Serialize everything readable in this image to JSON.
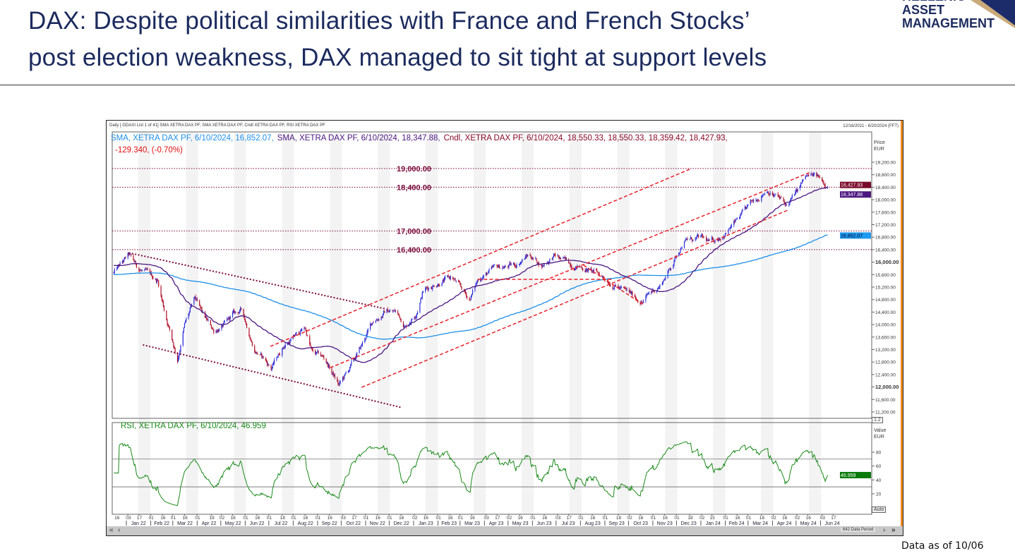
{
  "slide": {
    "title_line1": "DAX: Despite political similarities with France and French Stocks’",
    "title_line2": "post election weakness, DAX managed to sit tight at support levels",
    "logo_text": "HELLENIC ASSET MANAGEMENT",
    "logo_line2": "ASSET",
    "logo_line3": "MANAGEMENT",
    "footer": "Data as of 10/06"
  },
  "chart_data": {
    "type": "line",
    "title": "Daily [.GDAXI List 1 of 41] SMA XETRA DAX PF, SMA XETRA DAX PF, Cndl XETRA DAX PF, RSI XETRA DAX PF",
    "date_range": "12/16/2021 - 6/20/2024 (FFT)",
    "legend": {
      "sma200": "SMA, XETRA DAX PF, 6/10/2024, 16,852.07,",
      "sma50": "SMA, XETRA DAX PF, 6/10/2024, 18,347.88,",
      "cndl": "Cndl, XETRA DAX PF, 6/10/2024, 18,550.33, 18,550.33, 18,359.42, 18,427.93,",
      "change": "-129.340, (-0.70%)",
      "rsi": "RSI, XETRA DAX PF, 6/10/2024, 46.959"
    },
    "price_axis": {
      "label": "Price",
      "unit": "EUR",
      "ylim": [
        11200,
        19200
      ],
      "step": 400,
      "ticks": [
        "11,200.00",
        "11,600.00",
        "12,000.00",
        "12,400.00",
        "12,800.00",
        "13,200.00",
        "13,600.00",
        "14,000.00",
        "14,400.00",
        "14,800.00",
        "15,200.00",
        "15,600.00",
        "16,000.00",
        "16,400.00",
        "16,800.00",
        "17,200.00",
        "17,600.00",
        "18,000.00",
        "18,400.00",
        "18,800.00",
        "19,200.00"
      ]
    },
    "rsi_axis": {
      "label": "Value",
      "unit": "EUR",
      "ticks": [
        "20",
        "40",
        "60",
        "80"
      ],
      "bands": [
        30,
        70
      ]
    },
    "last_values": {
      "close": "18,427.93",
      "sma50": "18,347.88",
      "sma200": "16,852.07",
      "rsi": "46.959"
    },
    "levels": [
      {
        "value": 19000,
        "label": "19,000.00"
      },
      {
        "value": 18400,
        "label": "18,400.00"
      },
      {
        "value": 17000,
        "label": "17,000.00"
      },
      {
        "value": 16400,
        "label": "16,400.00"
      }
    ],
    "trendlines": [
      {
        "name": "desc-upper",
        "style": "dotted",
        "from": [
          "2022-01-04",
          16300
        ],
        "to": [
          "2022-11-27",
          14500
        ]
      },
      {
        "name": "desc-lower",
        "style": "dotted",
        "from": [
          "2022-01-22",
          13350
        ],
        "to": [
          "2022-12-17",
          11340
        ]
      },
      {
        "name": "rise-upper",
        "style": "dashed",
        "from": [
          "2022-07-03",
          13300
        ],
        "to": [
          "2023-12-20",
          19000
        ]
      },
      {
        "name": "rise-mid",
        "style": "dashed",
        "from": [
          "2022-09-17",
          12620
        ],
        "to": [
          "2024-05-21",
          18900
        ]
      },
      {
        "name": "rise-lower",
        "style": "dashed",
        "from": [
          "2022-10-27",
          11990
        ],
        "to": [
          "2024-04-20",
          17660
        ]
      },
      {
        "name": "range-flat",
        "style": "dashed",
        "from": [
          "2023-03-24",
          15450
        ],
        "to": [
          "2023-09-12",
          15450
        ]
      },
      {
        "name": "wedge-down",
        "style": "dashed",
        "from": [
          "2023-08-05",
          15900
        ],
        "to": [
          "2023-10-19",
          14650
        ]
      }
    ],
    "close_waypoints": [
      [
        "2021-12-16",
        15650
      ],
      [
        "2022-01-04",
        16200
      ],
      [
        "2022-01-16",
        15800
      ],
      [
        "2022-02-10",
        15400
      ],
      [
        "2022-02-18",
        14500
      ],
      [
        "2022-03-07",
        12900
      ],
      [
        "2022-03-16",
        14000
      ],
      [
        "2022-03-29",
        14800
      ],
      [
        "2022-04-10",
        14200
      ],
      [
        "2022-04-22",
        13800
      ],
      [
        "2022-05-07",
        14000
      ],
      [
        "2022-05-16",
        14300
      ],
      [
        "2022-05-28",
        14450
      ],
      [
        "2022-06-13",
        13200
      ],
      [
        "2022-06-25",
        12900
      ],
      [
        "2022-07-04",
        12600
      ],
      [
        "2022-07-19",
        13300
      ],
      [
        "2022-08-16",
        13900
      ],
      [
        "2022-08-25",
        13100
      ],
      [
        "2022-09-10",
        12900
      ],
      [
        "2022-09-28",
        12050
      ],
      [
        "2022-10-10",
        12500
      ],
      [
        "2022-10-25",
        13200
      ],
      [
        "2022-11-10",
        14100
      ],
      [
        "2022-11-28",
        14450
      ],
      [
        "2022-12-10",
        14400
      ],
      [
        "2022-12-22",
        13950
      ],
      [
        "2023-01-04",
        14400
      ],
      [
        "2023-01-13",
        15100
      ],
      [
        "2023-02-04",
        15400
      ],
      [
        "2023-02-19",
        15500
      ],
      [
        "2023-03-13",
        14800
      ],
      [
        "2023-03-25",
        15500
      ],
      [
        "2023-04-16",
        15800
      ],
      [
        "2023-05-10",
        15900
      ],
      [
        "2023-05-28",
        16250
      ],
      [
        "2023-06-13",
        15900
      ],
      [
        "2023-06-28",
        16200
      ],
      [
        "2023-07-10",
        16050
      ],
      [
        "2023-08-07",
        15800
      ],
      [
        "2023-08-25",
        15600
      ],
      [
        "2023-09-13",
        15300
      ],
      [
        "2023-10-01",
        15000
      ],
      [
        "2023-10-19",
        14750
      ],
      [
        "2023-10-28",
        15000
      ],
      [
        "2023-11-10",
        15250
      ],
      [
        "2023-11-25",
        15900
      ],
      [
        "2023-12-10",
        16700
      ],
      [
        "2024-01-01",
        16750
      ],
      [
        "2024-01-13",
        16600
      ],
      [
        "2024-02-01",
        16950
      ],
      [
        "2024-02-19",
        17400
      ],
      [
        "2024-03-10",
        18000
      ],
      [
        "2024-03-25",
        18350
      ],
      [
        "2024-04-07",
        18100
      ],
      [
        "2024-04-19",
        17800
      ],
      [
        "2024-05-01",
        18200
      ],
      [
        "2024-05-13",
        18700
      ],
      [
        "2024-05-25",
        18750
      ],
      [
        "2024-06-04",
        18600
      ],
      [
        "2024-06-10",
        18428
      ]
    ],
    "x_axis": {
      "lead_tick": "16",
      "months": [
        {
          "label": "Jan 22",
          "ticks": [
            "03",
            "17"
          ]
        },
        {
          "label": "Feb 22",
          "ticks": [
            "01",
            "16"
          ]
        },
        {
          "label": "Mar 22",
          "ticks": [
            "01",
            "16"
          ]
        },
        {
          "label": "Apr 22",
          "ticks": [
            "01",
            "19"
          ]
        },
        {
          "label": "May 22",
          "ticks": [
            "02",
            "16"
          ]
        },
        {
          "label": "Jun 22",
          "ticks": [
            "01",
            "16"
          ]
        },
        {
          "label": "Jul 22",
          "ticks": [
            "01",
            "18"
          ]
        },
        {
          "label": "Aug 22",
          "ticks": [
            "01",
            "16"
          ]
        },
        {
          "label": "Sep 22",
          "ticks": [
            "01",
            "16"
          ]
        },
        {
          "label": "Oct 22",
          "ticks": [
            "03",
            "17"
          ]
        },
        {
          "label": "Nov 22",
          "ticks": [
            "01",
            "16"
          ]
        },
        {
          "label": "Dec 22",
          "ticks": [
            "01",
            "16"
          ]
        },
        {
          "label": "Jan 23",
          "ticks": [
            "02",
            "16"
          ]
        },
        {
          "label": "Feb 23",
          "ticks": [
            "01",
            "16"
          ]
        },
        {
          "label": "Mar 23",
          "ticks": [
            "01",
            "16"
          ]
        },
        {
          "label": "Apr 23",
          "ticks": [
            "03",
            "17"
          ]
        },
        {
          "label": "May 23",
          "ticks": [
            "02",
            "16"
          ]
        },
        {
          "label": "Jun 23",
          "ticks": [
            "01",
            "16"
          ]
        },
        {
          "label": "Jul 23",
          "ticks": [
            "03",
            "17"
          ]
        },
        {
          "label": "Aug 23",
          "ticks": [
            "01",
            "16"
          ]
        },
        {
          "label": "Sep 23",
          "ticks": [
            "01",
            "18"
          ]
        },
        {
          "label": "Oct 23",
          "ticks": [
            "02",
            "16"
          ]
        },
        {
          "label": "Nov 23",
          "ticks": [
            "01",
            "16"
          ]
        },
        {
          "label": "Dec 23",
          "ticks": [
            "01",
            "18"
          ]
        },
        {
          "label": "Jan 24",
          "ticks": [
            "02",
            "15"
          ]
        },
        {
          "label": "Feb 24",
          "ticks": [
            "01",
            "16"
          ]
        },
        {
          "label": "Mar 24",
          "ticks": [
            "01",
            "18"
          ]
        },
        {
          "label": "Apr 24",
          "ticks": [
            "02",
            "16"
          ]
        },
        {
          "label": "May 24",
          "ticks": [
            "02",
            "16"
          ]
        },
        {
          "label": "Jun 24",
          "ticks": [
            "03",
            "17"
          ]
        }
      ]
    },
    "controls": {
      "auto": "Auto",
      "zoom_label": "1:2",
      "data_period": "642 Data Period",
      "scroll_left": "«",
      "scroll_left_one": "‹",
      "scroll_right_one": "›",
      "scroll_right": "»"
    },
    "colors": {
      "up": "#2b2bd9",
      "down": "#b0102a",
      "sma50": "#4b1680",
      "sma200": "#1e8fe8",
      "rsi": "#1a8a1a",
      "level": "#7a0a3a",
      "trend": "#e8202a",
      "desc": "#7a0a3a"
    }
  }
}
